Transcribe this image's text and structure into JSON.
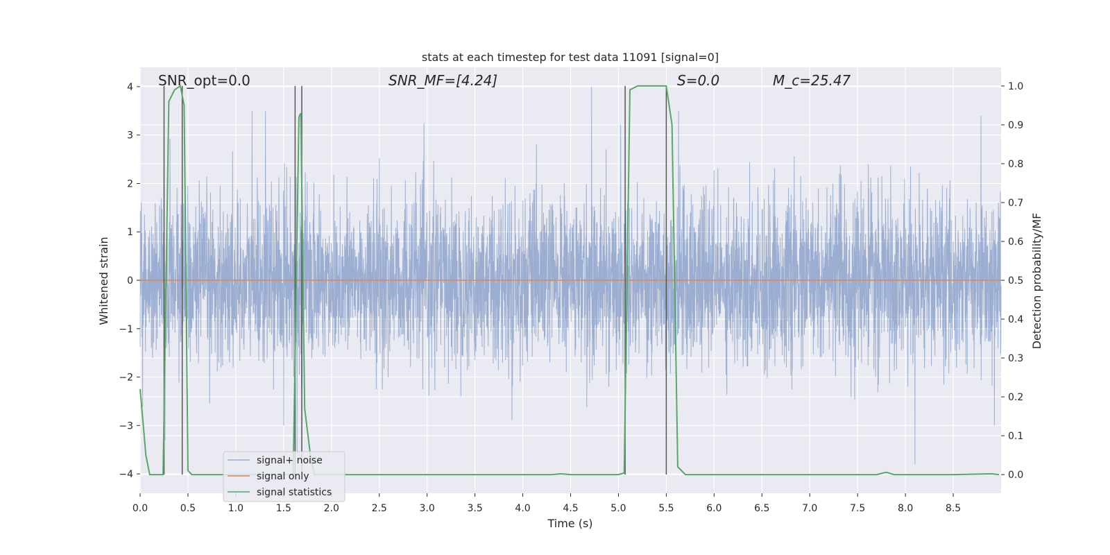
{
  "chart_data": {
    "type": "line",
    "title": "stats at each timestep for test data 11091 [signal=0]",
    "xlabel": "Time (s)",
    "ylabel": "Whitened strain",
    "y2label": "Detection probability/MF",
    "xlim": [
      0,
      9.0
    ],
    "ylim": [
      -4.4,
      4.4
    ],
    "y2lim": [
      -0.048,
      1.048
    ],
    "x_ticks": [
      0.0,
      0.5,
      1.0,
      1.5,
      2.0,
      2.5,
      3.0,
      3.5,
      4.0,
      4.5,
      5.0,
      5.5,
      6.0,
      6.5,
      7.0,
      7.5,
      8.0,
      8.5
    ],
    "x_tick_labels": [
      "0.0",
      "0.5",
      "1.0",
      "1.5",
      "2.0",
      "2.5",
      "3.0",
      "3.5",
      "4.0",
      "4.5",
      "5.0",
      "5.5",
      "6.0",
      "6.5",
      "7.0",
      "7.5",
      "8.0",
      "8.5"
    ],
    "y_ticks": [
      4,
      3,
      2,
      1,
      0,
      -1,
      -2,
      -3,
      -4
    ],
    "y_tick_labels": [
      "4",
      "3",
      "2",
      "1",
      "0",
      "−1",
      "−2",
      "−3",
      "−4"
    ],
    "y2_ticks": [
      1.0,
      0.9,
      0.8,
      0.7,
      0.6,
      0.5,
      0.4,
      0.3,
      0.2,
      0.1,
      0.0
    ],
    "y2_tick_labels": [
      "1.0",
      "0.9",
      "0.8",
      "0.7",
      "0.6",
      "0.5",
      "0.4",
      "0.3",
      "0.2",
      "0.1",
      "0.0"
    ],
    "grid": true,
    "annotations": [
      {
        "text": "SNR_opt=0.0",
        "x": 0.2,
        "y": 4.0
      },
      {
        "text": "SNR_MF=[4.24]",
        "x": 2.6,
        "y": 4.0
      },
      {
        "text": "S=0.0",
        "x": 5.6,
        "y": 4.0
      },
      {
        "text": "M_c=25.47",
        "x": 6.6,
        "y": 4.0
      }
    ],
    "series": [
      {
        "name": "signal+ noise",
        "color": "#4c72b0",
        "kind": "noise",
        "sample_count": 4500,
        "approx_std": 0.85,
        "peaks": [
          {
            "x": 0.44,
            "y": 4.0
          },
          {
            "x": 0.25,
            "y": 2.9
          },
          {
            "x": 0.26,
            "y": -3.3
          },
          {
            "x": 1.17,
            "y": 3.5
          },
          {
            "x": 1.31,
            "y": 3.5
          },
          {
            "x": 1.5,
            "y": -3.0
          },
          {
            "x": 1.64,
            "y": -3.6
          },
          {
            "x": 4.72,
            "y": 4.0
          },
          {
            "x": 5.63,
            "y": 3.5
          },
          {
            "x": 8.1,
            "y": -3.8
          },
          {
            "x": 8.79,
            "y": 3.4
          },
          {
            "x": 8.93,
            "y": -3.0
          }
        ]
      },
      {
        "name": "signal only",
        "color": "#dd8452",
        "x": [
          0.0,
          9.0
        ],
        "y": [
          0.0,
          0.0
        ]
      },
      {
        "name": "signal statistics",
        "color": "#55a868",
        "axis": "right",
        "x": [
          0.0,
          0.06,
          0.1,
          0.24,
          0.3,
          0.36,
          0.42,
          0.46,
          0.5,
          0.54,
          0.62,
          0.8,
          0.9,
          1.0,
          1.2,
          1.4,
          1.6,
          1.66,
          1.68,
          1.72,
          1.78,
          1.82,
          1.9,
          2.5,
          3.0,
          3.5,
          4.0,
          4.3,
          4.4,
          4.5,
          5.0,
          5.06,
          5.12,
          5.2,
          5.3,
          5.5,
          5.56,
          5.62,
          5.7,
          6.0,
          7.0,
          7.7,
          7.8,
          7.88,
          8.0,
          8.5,
          8.9,
          8.98
        ],
        "y": [
          0.22,
          0.05,
          0.0,
          0.0,
          0.96,
          0.99,
          1.0,
          0.95,
          0.01,
          0.0,
          0.0,
          0.0,
          0.0,
          0.0,
          0.0,
          0.0,
          0.0,
          0.92,
          0.93,
          0.17,
          0.05,
          0.0,
          0.0,
          0.0,
          0.0,
          0.0,
          0.0,
          0.0,
          0.002,
          0.0,
          0.0,
          0.004,
          0.99,
          1.0,
          1.0,
          1.0,
          0.9,
          0.02,
          0.0,
          0.0,
          0.0,
          0.0,
          0.006,
          0.0,
          0.0,
          0.0,
          0.002,
          0.0
        ]
      }
    ],
    "vlines": [
      0.25,
      0.44,
      1.62,
      1.69,
      5.07,
      5.5
    ],
    "vline_color": "#555555",
    "legend": {
      "placement": "lower-left",
      "entries": [
        {
          "label": "signal+ noise",
          "color": "#4c72b0"
        },
        {
          "label": "signal only",
          "color": "#dd8452"
        },
        {
          "label": "signal statistics",
          "color": "#55a868"
        }
      ]
    }
  },
  "style": {
    "plot_bg": "#eaeaf2",
    "grid_color": "#ffffff",
    "text_color": "#262626"
  }
}
